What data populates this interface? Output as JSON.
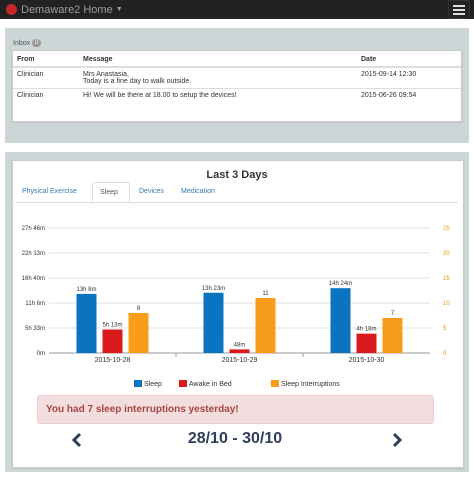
{
  "navbar": {
    "title": "Demaware2 Home"
  },
  "inbox": {
    "label": "Inbox",
    "count": "0",
    "columns": {
      "from": "From",
      "message": "Message",
      "date": "Date"
    },
    "rows": [
      {
        "from": "Clinician",
        "message_line1": "Mrs Anastasia,",
        "message_line2": "Today is a fine day to walk outside.",
        "date": "2015-09-14 12:30"
      },
      {
        "from": "Clinician",
        "message": "Hi! We will be there at 18.00 to setup the devices!",
        "date": "2015-06-26 09:54"
      }
    ]
  },
  "stats": {
    "title": "Last 3 Days",
    "tabs": [
      "Physical Exercise",
      "Sleep",
      "Devices",
      "Medication"
    ],
    "active_tab": "Sleep",
    "alert": "You had 7 sleep interruptions yesterday!",
    "range": "28/10 - 30/10"
  },
  "colors": {
    "sleep": "#0a74c0",
    "awake": "#d9191c",
    "interruptions": "#f89c1c",
    "right_axis": "#e89017"
  },
  "chart_data": {
    "type": "bar",
    "categories": [
      "2015-10-28",
      "2015-10-29",
      "2015-10-30"
    ],
    "series": [
      {
        "name": "Sleep",
        "axis": "left",
        "values_minutes": [
          788,
          803,
          864
        ],
        "labels": [
          "13h 8m",
          "13h 23m",
          "14h 24m"
        ]
      },
      {
        "name": "Awake in Bed",
        "axis": "left",
        "values_minutes": [
          313,
          48,
          258
        ],
        "labels": [
          "5h 13m",
          "48m",
          "4h 18m"
        ]
      },
      {
        "name": "Sleep Interruptions",
        "axis": "right",
        "values": [
          8,
          11,
          7
        ],
        "labels": [
          "8",
          "11",
          "7"
        ]
      }
    ],
    "left_axis": {
      "ticks": [
        "0m",
        "5h 33m",
        "11h 6m",
        "16h 40m",
        "22h 13m",
        "27h 46m"
      ],
      "max_minutes": 1666
    },
    "right_axis": {
      "ticks": [
        "0",
        "5",
        "10",
        "15",
        "20",
        "25"
      ],
      "max": 25
    },
    "legend_position": "bottom"
  }
}
